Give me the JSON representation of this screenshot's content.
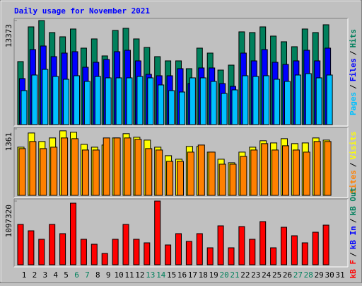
{
  "title": "Daily usage for November 2021",
  "legend_separator": "/",
  "chart_data": [
    {
      "type": "bar",
      "ylim": [
        0,
        13373
      ],
      "yticks": [
        13373
      ],
      "series": [
        {
          "name": "Hits",
          "color": "#00805c",
          "values": [
            8099,
            12558,
            13373,
            11830,
            11284,
            12285,
            9828,
            11011,
            8827,
            12103,
            12376,
            11011,
            9919,
            8736,
            8190,
            8190,
            7189,
            9828,
            9191,
            7007,
            7644,
            11921,
            11830,
            12558,
            11375,
            10647,
            10010,
            12285,
            11830,
            12831,
            null
          ]
        },
        {
          "name": "Files",
          "color": "#0000ff",
          "values": [
            5915,
            9646,
            10101,
            8736,
            9191,
            9373,
            7371,
            8008,
            8372,
            9373,
            9555,
            8190,
            6461,
            6279,
            6279,
            7189,
            5278,
            7280,
            7280,
            5278,
            4914,
            9191,
            8190,
            9646,
            8008,
            7735,
            8190,
            9555,
            8190,
            9828,
            null
          ]
        },
        {
          "name": "Pages",
          "color": "#00c0ff",
          "values": [
            4368,
            6370,
            7098,
            6188,
            5824,
            6279,
            5551,
            6188,
            6006,
            6006,
            6006,
            6188,
            6006,
            5096,
            4368,
            4186,
            6006,
            6006,
            5551,
            4004,
            4459,
            6279,
            6188,
            6279,
            5824,
            5551,
            6370,
            6552,
            6006,
            6370,
            null
          ]
        }
      ]
    },
    {
      "type": "bar",
      "ylim": [
        0,
        1361
      ],
      "yticks": [
        1361
      ],
      "series": [
        {
          "name": "Visits",
          "color": "#ffff00",
          "values": [
            986,
            1276,
            1102,
            1175,
            1320,
            1291,
            1044,
            986,
            1030,
            1175,
            1262,
            1189,
            1131,
            986,
            812,
            740,
            1001,
            1001,
            885,
            740,
            667,
            885,
            986,
            1117,
            1073,
            1160,
            1059,
            1073,
            1175,
            1131,
            null
          ]
        },
        {
          "name": "Sites",
          "color": "#ff8000",
          "values": [
            957,
            1102,
            957,
            986,
            1175,
            1160,
            928,
            928,
            1175,
            1175,
            1175,
            1146,
            957,
            928,
            696,
            696,
            885,
            1030,
            885,
            638,
            638,
            798,
            928,
            1059,
            928,
            1015,
            928,
            885,
            1102,
            1102,
            null
          ]
        }
      ]
    },
    {
      "type": "bar",
      "ylim": [
        0,
        1097320
      ],
      "yticks": [
        1097320
      ],
      "categories": [
        "1",
        "2",
        "3",
        "4",
        "5",
        "6",
        "7",
        "8",
        "9",
        "10",
        "11",
        "12",
        "13",
        "14",
        "15",
        "16",
        "17",
        "18",
        "19",
        "20",
        "21",
        "22",
        "23",
        "24",
        "25",
        "26",
        "27",
        "28",
        "29",
        "30",
        "31"
      ],
      "category_colors": [
        "#000000",
        "#000000",
        "#000000",
        "#000000",
        "#000000",
        "#00805c",
        "#00805c",
        "#000000",
        "#000000",
        "#000000",
        "#000000",
        "#000000",
        "#00805c",
        "#00805c",
        "#000000",
        "#000000",
        "#000000",
        "#000000",
        "#000000",
        "#00805c",
        "#00805c",
        "#000000",
        "#000000",
        "#000000",
        "#000000",
        "#000000",
        "#00805c",
        "#00805c",
        "#000000",
        "#000000",
        "#000000"
      ],
      "series": [
        {
          "name": "kB Out",
          "color": "#00805c",
          "values": [
            null,
            null,
            null,
            null,
            null,
            null,
            null,
            null,
            null,
            null,
            null,
            null,
            null,
            null,
            null,
            null,
            null,
            null,
            null,
            null,
            null,
            null,
            null,
            null,
            null,
            null,
            null,
            null,
            null,
            null,
            null
          ]
        },
        {
          "name": "kB In",
          "color": "#0000ff",
          "values": [
            null,
            null,
            null,
            null,
            null,
            null,
            null,
            null,
            null,
            null,
            null,
            null,
            null,
            null,
            null,
            null,
            null,
            null,
            null,
            null,
            null,
            null,
            null,
            null,
            null,
            null,
            null,
            null,
            null,
            null,
            null
          ]
        },
        {
          "name": "kB F",
          "color": "#ff0000",
          "values": [
            694944,
            585216,
            438912,
            694944,
            536448,
            1060704,
            438912,
            353568,
            195072,
            438912,
            694944,
            438912,
            377952,
            1097320,
            341376,
            536448,
            402336,
            536448,
            292608,
            670560,
            292608,
            658368,
            438912,
            743712,
            292608,
            646176,
            499872,
            377952,
            560832,
            682752,
            null
          ]
        }
      ]
    }
  ]
}
